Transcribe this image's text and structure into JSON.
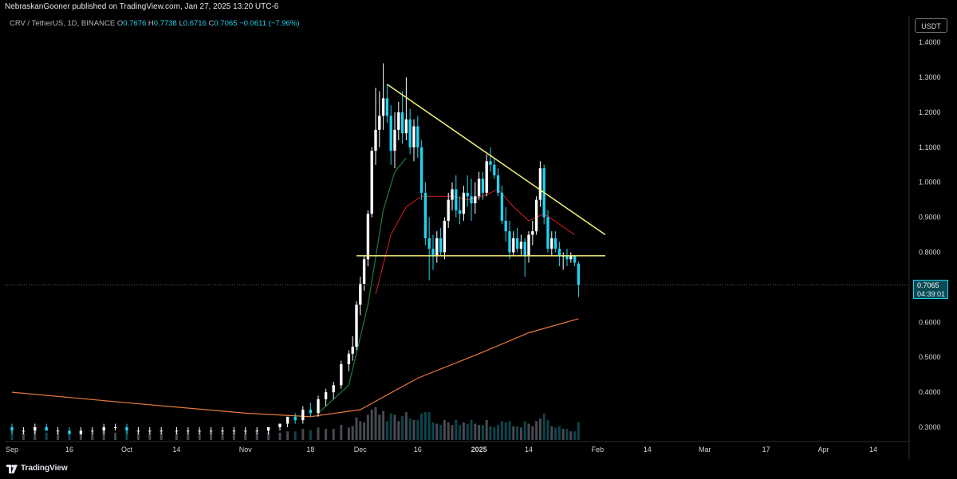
{
  "header": {
    "published": "NebraskanGooner published on TradingView.com, Jan 27, 2025 13:20 UTC-6"
  },
  "legend": {
    "symbol": "CRV / TetherUS, 1D, BINANCE",
    "open_label": "O",
    "open": "0.7676",
    "high_label": "H",
    "high": "0.7738",
    "low_label": "L",
    "low": "0.6716",
    "close_label": "C",
    "close": "0.7065",
    "change": "−0.0611 (−7.96%)"
  },
  "price_axis": {
    "currency_button": "USDT",
    "current_price": "0.7065",
    "countdown": "04:39:01"
  },
  "footer": {
    "brand": "TradingView",
    "logo_icon": "tradingview-logo-icon"
  },
  "colors": {
    "background": "#000000",
    "up_candle": "#ffffff",
    "down_candle": "#22d1ee",
    "trendline": "#f5f37a",
    "ma_long": "#e8793a",
    "ma_short_red": "#b51b1b",
    "ma_short_green": "#1f7a3c",
    "text": "#d1d4dc"
  },
  "chart_data": {
    "type": "candlestick",
    "symbol": "CRV / TetherUS",
    "interval": "1D",
    "exchange": "BINANCE",
    "y_ticks": [
      "1.4000",
      "1.3000",
      "1.2000",
      "1.1000",
      "1.0000",
      "0.9000",
      "0.8000",
      "0.7000",
      "0.6000",
      "0.5000",
      "0.4000",
      "0.3000"
    ],
    "ylim": [
      0.27,
      1.43
    ],
    "x_ticks": [
      "Sep",
      "16",
      "Oct",
      "14",
      "Nov",
      "18",
      "Dec",
      "16",
      "2025",
      "14",
      "Feb",
      "14",
      "Mar",
      "17",
      "Apr",
      "14"
    ],
    "x_tick_dates": [
      "2024-09-01",
      "2024-09-16",
      "2024-10-01",
      "2024-10-14",
      "2024-11-01",
      "2024-11-18",
      "2024-12-01",
      "2024-12-16",
      "2025-01-01",
      "2025-01-14",
      "2025-02-01",
      "2025-02-14",
      "2025-03-01",
      "2025-03-17",
      "2025-04-01",
      "2025-04-14"
    ],
    "candles": [
      [
        "2024-09-01",
        0.3,
        0.31,
        0.28,
        0.29
      ],
      [
        "2024-09-04",
        0.29,
        0.3,
        0.28,
        0.29
      ],
      [
        "2024-09-07",
        0.29,
        0.31,
        0.28,
        0.3
      ],
      [
        "2024-09-10",
        0.3,
        0.31,
        0.29,
        0.29
      ],
      [
        "2024-09-13",
        0.29,
        0.3,
        0.28,
        0.29
      ],
      [
        "2024-09-16",
        0.29,
        0.3,
        0.28,
        0.28
      ],
      [
        "2024-09-19",
        0.28,
        0.3,
        0.28,
        0.29
      ],
      [
        "2024-09-22",
        0.29,
        0.3,
        0.28,
        0.29
      ],
      [
        "2024-09-25",
        0.29,
        0.31,
        0.28,
        0.3
      ],
      [
        "2024-09-28",
        0.3,
        0.31,
        0.29,
        0.3
      ],
      [
        "2024-10-01",
        0.3,
        0.31,
        0.28,
        0.29
      ],
      [
        "2024-10-04",
        0.29,
        0.3,
        0.28,
        0.29
      ],
      [
        "2024-10-07",
        0.29,
        0.3,
        0.28,
        0.29
      ],
      [
        "2024-10-10",
        0.29,
        0.3,
        0.28,
        0.29
      ],
      [
        "2024-10-14",
        0.29,
        0.3,
        0.28,
        0.29
      ],
      [
        "2024-10-17",
        0.29,
        0.3,
        0.28,
        0.29
      ],
      [
        "2024-10-20",
        0.29,
        0.3,
        0.28,
        0.29
      ],
      [
        "2024-10-23",
        0.29,
        0.3,
        0.28,
        0.29
      ],
      [
        "2024-10-26",
        0.29,
        0.3,
        0.28,
        0.29
      ],
      [
        "2024-10-29",
        0.29,
        0.3,
        0.28,
        0.29
      ],
      [
        "2024-11-01",
        0.29,
        0.3,
        0.28,
        0.29
      ],
      [
        "2024-11-04",
        0.29,
        0.3,
        0.28,
        0.29
      ],
      [
        "2024-11-07",
        0.29,
        0.3,
        0.28,
        0.3
      ],
      [
        "2024-11-10",
        0.3,
        0.31,
        0.29,
        0.31
      ],
      [
        "2024-11-12",
        0.31,
        0.33,
        0.3,
        0.33
      ],
      [
        "2024-11-14",
        0.33,
        0.34,
        0.31,
        0.32
      ],
      [
        "2024-11-16",
        0.32,
        0.36,
        0.31,
        0.35
      ],
      [
        "2024-11-18",
        0.35,
        0.37,
        0.33,
        0.34
      ],
      [
        "2024-11-20",
        0.34,
        0.39,
        0.33,
        0.38
      ],
      [
        "2024-11-22",
        0.38,
        0.41,
        0.36,
        0.4
      ],
      [
        "2024-11-24",
        0.4,
        0.43,
        0.38,
        0.42
      ],
      [
        "2024-11-26",
        0.42,
        0.49,
        0.41,
        0.48
      ],
      [
        "2024-11-28",
        0.48,
        0.52,
        0.46,
        0.51
      ],
      [
        "2024-11-29",
        0.51,
        0.56,
        0.49,
        0.53
      ],
      [
        "2024-11-30",
        0.53,
        0.66,
        0.52,
        0.65
      ],
      [
        "2024-12-01",
        0.65,
        0.73,
        0.62,
        0.71
      ],
      [
        "2024-12-02",
        0.71,
        0.79,
        0.69,
        0.78
      ],
      [
        "2024-12-03",
        0.78,
        0.92,
        0.76,
        0.91
      ],
      [
        "2024-12-04",
        0.91,
        1.1,
        0.9,
        1.09
      ],
      [
        "2024-12-05",
        1.09,
        1.27,
        1.05,
        1.15
      ],
      [
        "2024-12-06",
        1.15,
        1.26,
        1.1,
        1.19
      ],
      [
        "2024-12-07",
        1.19,
        1.34,
        1.15,
        1.24
      ],
      [
        "2024-12-08",
        1.24,
        1.28,
        1.17,
        1.19
      ],
      [
        "2024-12-09",
        1.19,
        1.22,
        1.05,
        1.09
      ],
      [
        "2024-12-10",
        1.09,
        1.2,
        1.04,
        1.15
      ],
      [
        "2024-12-11",
        1.15,
        1.23,
        1.12,
        1.2
      ],
      [
        "2024-12-12",
        1.2,
        1.26,
        1.11,
        1.14
      ],
      [
        "2024-12-13",
        1.14,
        1.3,
        1.12,
        1.18
      ],
      [
        "2024-12-14",
        1.18,
        1.21,
        1.08,
        1.1
      ],
      [
        "2024-12-15",
        1.1,
        1.18,
        1.06,
        1.16
      ],
      [
        "2024-12-16",
        1.16,
        1.19,
        1.07,
        1.1
      ],
      [
        "2024-12-17",
        1.1,
        1.12,
        0.95,
        0.97
      ],
      [
        "2024-12-18",
        0.97,
        1.0,
        0.82,
        0.84
      ],
      [
        "2024-12-19",
        0.84,
        0.9,
        0.72,
        0.81
      ],
      [
        "2024-12-20",
        0.81,
        0.85,
        0.75,
        0.79
      ],
      [
        "2024-12-21",
        0.79,
        0.86,
        0.77,
        0.84
      ],
      [
        "2024-12-22",
        0.84,
        0.87,
        0.79,
        0.8
      ],
      [
        "2024-12-23",
        0.8,
        0.9,
        0.78,
        0.89
      ],
      [
        "2024-12-24",
        0.89,
        0.97,
        0.87,
        0.95
      ],
      [
        "2024-12-25",
        0.95,
        1.0,
        0.92,
        0.98
      ],
      [
        "2024-12-26",
        0.98,
        1.02,
        0.9,
        0.92
      ],
      [
        "2024-12-27",
        0.92,
        0.96,
        0.88,
        0.91
      ],
      [
        "2024-12-28",
        0.91,
        0.99,
        0.89,
        0.97
      ],
      [
        "2024-12-29",
        0.97,
        1.02,
        0.93,
        0.96
      ],
      [
        "2024-12-30",
        0.96,
        1.01,
        0.89,
        0.94
      ],
      [
        "2024-12-31",
        0.94,
        1.0,
        0.91,
        0.96
      ],
      [
        "2025-01-01",
        0.96,
        1.03,
        0.95,
        1.01
      ],
      [
        "2025-01-02",
        1.01,
        1.03,
        0.95,
        0.97
      ],
      [
        "2025-01-03",
        0.97,
        1.08,
        0.96,
        1.06
      ],
      [
        "2025-01-04",
        1.06,
        1.1,
        1.03,
        1.05
      ],
      [
        "2025-01-05",
        1.05,
        1.07,
        1.01,
        1.02
      ],
      [
        "2025-01-06",
        1.02,
        1.04,
        0.96,
        0.97
      ],
      [
        "2025-01-07",
        0.97,
        0.99,
        0.88,
        0.89
      ],
      [
        "2025-01-08",
        0.89,
        0.93,
        0.83,
        0.86
      ],
      [
        "2025-01-09",
        0.86,
        0.89,
        0.78,
        0.8
      ],
      [
        "2025-01-10",
        0.8,
        0.86,
        0.79,
        0.84
      ],
      [
        "2025-01-11",
        0.84,
        0.87,
        0.8,
        0.81
      ],
      [
        "2025-01-12",
        0.81,
        0.85,
        0.79,
        0.83
      ],
      [
        "2025-01-13",
        0.83,
        0.84,
        0.73,
        0.79
      ],
      [
        "2025-01-14",
        0.79,
        0.86,
        0.77,
        0.85
      ],
      [
        "2025-01-15",
        0.85,
        0.89,
        0.82,
        0.86
      ],
      [
        "2025-01-16",
        0.86,
        0.96,
        0.85,
        0.95
      ],
      [
        "2025-01-17",
        0.95,
        1.06,
        0.93,
        1.04
      ],
      [
        "2025-01-18",
        1.04,
        1.05,
        0.88,
        0.9
      ],
      [
        "2025-01-19",
        0.9,
        0.92,
        0.8,
        0.81
      ],
      [
        "2025-01-20",
        0.81,
        0.86,
        0.79,
        0.84
      ],
      [
        "2025-01-21",
        0.84,
        0.86,
        0.8,
        0.81
      ],
      [
        "2025-01-22",
        0.81,
        0.83,
        0.76,
        0.79
      ],
      [
        "2025-01-23",
        0.79,
        0.8,
        0.75,
        0.79
      ],
      [
        "2025-01-24",
        0.79,
        0.81,
        0.76,
        0.78
      ],
      [
        "2025-01-25",
        0.78,
        0.8,
        0.77,
        0.79
      ],
      [
        "2025-01-26",
        0.79,
        0.79,
        0.76,
        0.77
      ],
      [
        "2025-01-27",
        0.7676,
        0.7738,
        0.6716,
        0.7065
      ]
    ],
    "moving_averages": [
      {
        "color": "#e8793a",
        "points": [
          [
            "2024-09-01",
            0.4
          ],
          [
            "2024-10-01",
            0.37
          ],
          [
            "2024-11-01",
            0.34
          ],
          [
            "2024-11-18",
            0.33
          ],
          [
            "2024-12-01",
            0.35
          ],
          [
            "2024-12-16",
            0.44
          ],
          [
            "2025-01-01",
            0.51
          ],
          [
            "2025-01-14",
            0.57
          ],
          [
            "2025-01-27",
            0.61
          ]
        ]
      },
      {
        "color": "#b51b1b",
        "points": [
          [
            "2024-12-05",
            0.68
          ],
          [
            "2024-12-09",
            0.85
          ],
          [
            "2024-12-13",
            0.93
          ],
          [
            "2024-12-17",
            0.96
          ],
          [
            "2024-12-21",
            0.96
          ],
          [
            "2024-12-25",
            0.96
          ],
          [
            "2024-12-29",
            0.95
          ],
          [
            "2025-01-02",
            0.96
          ],
          [
            "2025-01-06",
            0.98
          ],
          [
            "2025-01-10",
            0.93
          ],
          [
            "2025-01-14",
            0.89
          ],
          [
            "2025-01-18",
            0.91
          ],
          [
            "2025-01-22",
            0.88
          ],
          [
            "2025-01-26",
            0.85
          ]
        ]
      },
      {
        "color": "#1f7a3c",
        "points": [
          [
            "2024-11-20",
            0.34
          ],
          [
            "2024-11-28",
            0.42
          ],
          [
            "2024-12-03",
            0.65
          ],
          [
            "2024-12-07",
            0.92
          ],
          [
            "2024-12-10",
            1.03
          ],
          [
            "2024-12-13",
            1.07
          ]
        ]
      }
    ],
    "trendlines": [
      {
        "from": [
          "2024-12-08",
          1.28
        ],
        "to": [
          "2025-02-03",
          0.85
        ],
        "color": "#f5f37a"
      },
      {
        "from": [
          "2024-11-30",
          0.79
        ],
        "to": [
          "2025-02-03",
          0.79
        ],
        "color": "#f5f37a"
      }
    ],
    "last_price": 0.7065
  }
}
